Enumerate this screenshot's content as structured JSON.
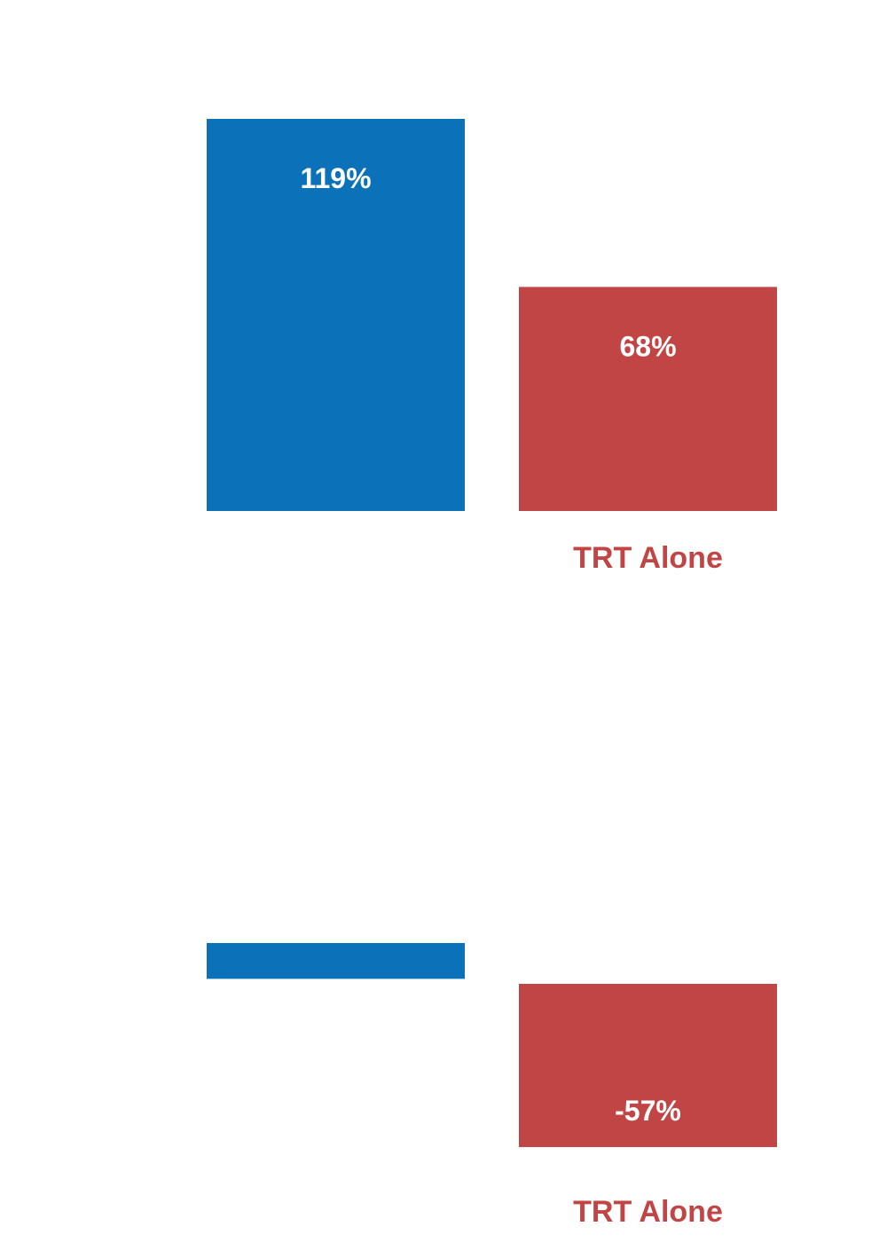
{
  "chart_data": [
    {
      "type": "bar",
      "categories": [
        "",
        "TRT Alone"
      ],
      "values": [
        119,
        68
      ],
      "data_labels": [
        "119%",
        "68%"
      ],
      "colors": [
        "#0b72b9",
        "#c24545"
      ],
      "category_label_color": "#c24545",
      "ylim": [
        0,
        119
      ]
    },
    {
      "type": "bar",
      "categories": [
        "",
        "TRT Alone"
      ],
      "values": [
        -10,
        -57
      ],
      "data_labels": [
        "",
        "-57%"
      ],
      "colors": [
        "#0b72b9",
        "#c24545"
      ],
      "category_label_color": "#c24545",
      "ylim": [
        -57,
        0
      ]
    }
  ]
}
